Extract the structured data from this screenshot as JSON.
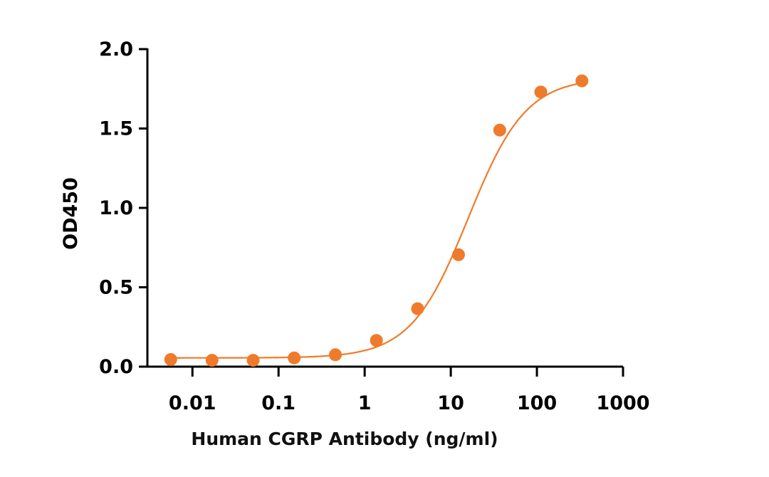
{
  "chart_data": {
    "type": "scatter",
    "title": "",
    "xlabel": "Human CGRP Antibody (ng/ml)",
    "ylabel": "OD450",
    "x_scale": "log",
    "xlim": [
      0.003,
      1000
    ],
    "ylim": [
      0,
      2.0
    ],
    "x_ticks": [
      0.01,
      0.1,
      1,
      10,
      100,
      1000
    ],
    "x_tick_labels": [
      "0.01",
      "0.1",
      "1",
      "10",
      "100",
      "1000"
    ],
    "y_ticks": [
      0.0,
      0.5,
      1.0,
      1.5,
      2.0
    ],
    "y_tick_labels": [
      "0.0",
      "0.5",
      "1.0",
      "1.5",
      "2.0"
    ],
    "grid": false,
    "colors": {
      "series": "#F07A2B",
      "axis": "#000000"
    },
    "series": [
      {
        "x": [
          0.0056,
          0.0169,
          0.0508,
          0.152,
          0.457,
          1.37,
          4.12,
          12.3,
          37.0,
          111,
          333
        ],
        "y": [
          0.045,
          0.04,
          0.04,
          0.055,
          0.075,
          0.165,
          0.365,
          0.705,
          1.49,
          1.73,
          1.8
        ]
      }
    ],
    "fit_curve": {
      "model": "4PL",
      "bottom": 0.055,
      "top": 1.82,
      "ec50": 16,
      "hill": 1.3
    }
  }
}
